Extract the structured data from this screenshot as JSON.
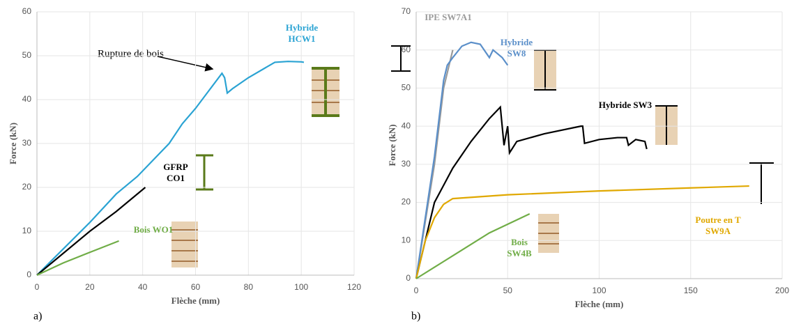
{
  "chart_data": [
    {
      "type": "line",
      "panel": "a)",
      "xlabel": "Flèche (mm)",
      "ylabel": "Force (kN)",
      "xlim": [
        0,
        120
      ],
      "xticks": [
        0,
        20,
        40,
        60,
        80,
        100,
        120
      ],
      "ylim": [
        0,
        60
      ],
      "yticks": [
        0,
        10,
        20,
        30,
        40,
        50,
        60
      ],
      "grid": true,
      "annotations": [
        {
          "text": "Rupture de bois"
        }
      ],
      "series": [
        {
          "name": "Hybride HCW1",
          "color": "#2aa3d3",
          "x": [
            0,
            10,
            20,
            30,
            38,
            50,
            55,
            60,
            65,
            70,
            71,
            72,
            74,
            80,
            90,
            95,
            100,
            101
          ],
          "values": [
            0,
            6,
            12,
            18.5,
            22.5,
            30,
            34.5,
            38,
            42,
            46,
            45,
            41.5,
            42.5,
            45,
            48.5,
            48.7,
            48.6,
            48.5
          ]
        },
        {
          "name": "GFRP CO1",
          "color": "#000000",
          "x": [
            0,
            10,
            20,
            30,
            41
          ],
          "values": [
            0,
            5,
            10,
            14.5,
            20
          ]
        },
        {
          "name": "Bois WO1",
          "color": "#70ad47",
          "x": [
            0,
            10,
            20,
            31
          ],
          "values": [
            0,
            2.8,
            5.2,
            7.8
          ]
        }
      ]
    },
    {
      "type": "line",
      "panel": "b)",
      "xlabel": "Flèche (mm)",
      "ylabel": "Force (kN)",
      "xlim": [
        0,
        200
      ],
      "xticks": [
        0,
        50,
        100,
        150,
        200
      ],
      "ylim": [
        0,
        70
      ],
      "yticks": [
        0,
        10,
        20,
        30,
        40,
        50,
        60,
        70
      ],
      "grid": true,
      "series": [
        {
          "name": "IPE SW7A1",
          "color": "#9a9a9a",
          "x": [
            0,
            10,
            15,
            18,
            20
          ],
          "values": [
            0,
            30,
            50,
            56,
            60
          ]
        },
        {
          "name": "Hybride SW8",
          "color": "#5b8fc9",
          "x": [
            0,
            10,
            15,
            17,
            20,
            25,
            30,
            35,
            40,
            42,
            47,
            50
          ],
          "values": [
            0,
            32,
            52,
            56,
            58,
            61,
            62,
            61.5,
            58,
            60,
            58,
            56
          ]
        },
        {
          "name": "Hybride SW3",
          "color": "#000000",
          "x": [
            0,
            10,
            20,
            30,
            40,
            46,
            47,
            48,
            50,
            51,
            55,
            70,
            90,
            91,
            92,
            100,
            110,
            115,
            116,
            120,
            125,
            126
          ],
          "values": [
            0,
            20,
            29,
            36,
            42,
            45,
            40,
            35,
            40,
            33,
            36,
            38,
            40,
            40,
            35.5,
            36.5,
            37,
            37,
            35,
            36.5,
            36,
            34
          ]
        },
        {
          "name": "Poutre en T SW9A",
          "color": "#e0a800",
          "x": [
            0,
            5,
            10,
            15,
            20,
            50,
            100,
            150,
            182
          ],
          "values": [
            0,
            10,
            16,
            19.5,
            21,
            22,
            23,
            23.8,
            24.3
          ]
        },
        {
          "name": "Bois SW4B",
          "color": "#70ad47",
          "x": [
            0,
            20,
            40,
            62
          ],
          "values": [
            0,
            6,
            12,
            17
          ]
        }
      ]
    }
  ]
}
